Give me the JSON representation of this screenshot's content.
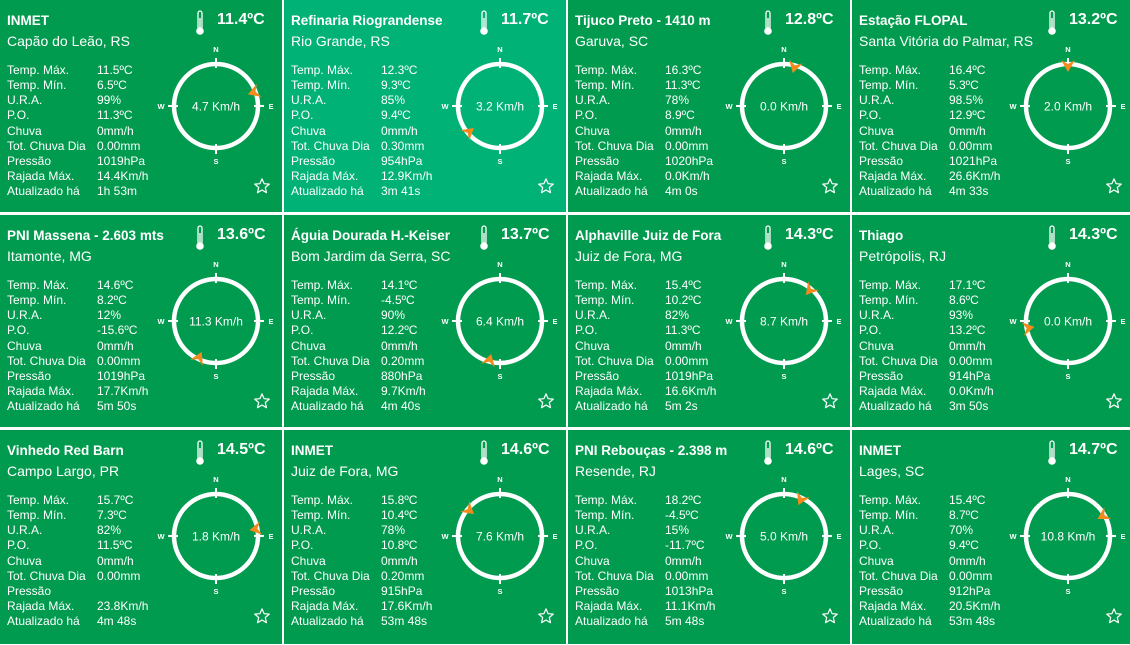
{
  "labels": {
    "max": "Temp. Máx.",
    "min": "Temp. Mín.",
    "ura": "U.R.A.",
    "po": "P.O.",
    "rain": "Chuva",
    "rain_day": "Tot. Chuva Dia",
    "pressure": "Pressão",
    "gust": "Rajada Máx.",
    "updated": "Atualizado há"
  },
  "compass": {
    "n": "N",
    "s": "S",
    "e": "E",
    "w": "W"
  },
  "icons": {
    "thermometer": "thermometer-icon",
    "favorite": "star-icon",
    "wind_arrow": "wind-direction-arrow-icon"
  },
  "colors": {
    "card_dark": "#009b4e",
    "card_light": "#00b276",
    "text": "#ffffff",
    "arrow": "#f28b1c"
  },
  "stations": [
    {
      "name": "INMET",
      "location": "Capão do Leão, RS",
      "temp": "11.4ºC",
      "max": "11.5ºC",
      "min": "6.5ºC",
      "ura": "99%",
      "po": "11.3ºC",
      "rain": "0mm/h",
      "rain_day": "0.00mm",
      "pressure": "1019hPa",
      "gust": "14.4Km/h",
      "updated": "1h 53m",
      "wind": "4.7 Km/h",
      "wind_dir_deg": 70,
      "shade": "dark"
    },
    {
      "name": "Refinaria Riograndense",
      "location": "Rio Grande, RS",
      "temp": "11.7ºC",
      "max": "12.3ºC",
      "min": "9.3ºC",
      "ura": "85%",
      "po": "9.4ºC",
      "rain": "0mm/h",
      "rain_day": "0.30mm",
      "pressure": "954hPa",
      "gust": "12.9Km/h",
      "updated": "3m 41s",
      "wind": "3.2 Km/h",
      "wind_dir_deg": 230,
      "shade": "light"
    },
    {
      "name": "Tijuco Preto - 1410 m",
      "location": "Garuva, SC",
      "temp": "12.8ºC",
      "max": "16.3ºC",
      "min": "11.3ºC",
      "ura": "78%",
      "po": "8.9ºC",
      "rain": "0mm/h",
      "rain_day": "0.00mm",
      "pressure": "1020hPa",
      "gust": "0.0Km/h",
      "updated": "4m 0s",
      "wind": "0.0 Km/h",
      "wind_dir_deg": 15,
      "shade": "dark"
    },
    {
      "name": "Estação FLOPAL",
      "location": "Santa Vitória do Palmar, RS",
      "temp": "13.2ºC",
      "max": "16.4ºC",
      "min": "5.3ºC",
      "ura": "98.5%",
      "po": "12.9ºC",
      "rain": "0mm/h",
      "rain_day": "0.00mm",
      "pressure": "1021hPa",
      "gust": "26.6Km/h",
      "updated": "4m 33s",
      "wind": "2.0 Km/h",
      "wind_dir_deg": 0,
      "shade": "dark"
    },
    {
      "name": "PNI Massena - 2.603 mts",
      "location": "Itamonte, MG",
      "temp": "13.6ºC",
      "max": "14.6ºC",
      "min": "8.2ºC",
      "ura": "12%",
      "po": "-15.6ºC",
      "rain": "0mm/h",
      "rain_day": "0.00mm",
      "pressure": "1019hPa",
      "gust": "17.7Km/h",
      "updated": "5m 50s",
      "wind": "11.3 Km/h",
      "wind_dir_deg": 205,
      "shade": "dark"
    },
    {
      "name": "Águia Dourada H.-Keiser",
      "location": "Bom Jardim da Serra, SC",
      "temp": "13.7ºC",
      "max": "14.1ºC",
      "min": "-4.5ºC",
      "ura": "90%",
      "po": "12.2ºC",
      "rain": "0mm/h",
      "rain_day": "0.20mm",
      "pressure": "880hPa",
      "gust": "9.7Km/h",
      "updated": "4m 40s",
      "wind": "6.4 Km/h",
      "wind_dir_deg": 195,
      "shade": "dark"
    },
    {
      "name": "Alphaville Juiz de Fora",
      "location": "Juiz de Fora, MG",
      "temp": "14.3ºC",
      "max": "15.4ºC",
      "min": "10.2ºC",
      "ura": "82%",
      "po": "11.3ºC",
      "rain": "0mm/h",
      "rain_day": "0.00mm",
      "pressure": "1019hPa",
      "gust": "16.6Km/h",
      "updated": "5m 2s",
      "wind": "8.7 Km/h",
      "wind_dir_deg": 40,
      "shade": "dark"
    },
    {
      "name": "Thiago",
      "location": "Petrópolis, RJ",
      "temp": "14.3ºC",
      "max": "17.1ºC",
      "min": "8.6ºC",
      "ura": "93%",
      "po": "13.2ºC",
      "rain": "0mm/h",
      "rain_day": "0.00mm",
      "pressure": "914hPa",
      "gust": "0.0Km/h",
      "updated": "3m 50s",
      "wind": "0.0 Km/h",
      "wind_dir_deg": 260,
      "shade": "dark"
    },
    {
      "name": "Vinhedo Red Barn",
      "location": "Campo Largo, PR",
      "temp": "14.5ºC",
      "max": "15.7ºC",
      "min": "7.3ºC",
      "ura": "82%",
      "po": "11.5ºC",
      "rain": "0mm/h",
      "rain_day": "0.00mm",
      "pressure": "",
      "gust": "23.8Km/h",
      "updated": "4m 48s",
      "wind": "1.8 Km/h",
      "wind_dir_deg": 80,
      "shade": "dark"
    },
    {
      "name": "INMET",
      "location": "Juiz de Fora, MG",
      "temp": "14.6ºC",
      "max": "15.8ºC",
      "min": "10.4ºC",
      "ura": "78%",
      "po": "10.8ºC",
      "rain": "0mm/h",
      "rain_day": "0.20mm",
      "pressure": "915hPa",
      "gust": "17.6Km/h",
      "updated": "53m 48s",
      "wind": "7.6 Km/h",
      "wind_dir_deg": 310,
      "shade": "dark"
    },
    {
      "name": "PNI Rebouças - 2.398 m",
      "location": "Resende, RJ",
      "temp": "14.6ºC",
      "max": "18.2ºC",
      "min": "-4.5ºC",
      "ura": "15%",
      "po": "-11.7ºC",
      "rain": "0mm/h",
      "rain_day": "0.00mm",
      "pressure": "1013hPa",
      "gust": "11.1Km/h",
      "updated": "5m 48s",
      "wind": "5.0 Km/h",
      "wind_dir_deg": 25,
      "shade": "dark"
    },
    {
      "name": "INMET",
      "location": "Lages, SC",
      "temp": "14.7ºC",
      "max": "15.4ºC",
      "min": "8.7ºC",
      "ura": "70%",
      "po": "9.4ºC",
      "rain": "0mm/h",
      "rain_day": "0.00mm",
      "pressure": "912hPa",
      "gust": "20.5Km/h",
      "updated": "53m 48s",
      "wind": "10.8 Km/h",
      "wind_dir_deg": 60,
      "shade": "dark"
    }
  ]
}
